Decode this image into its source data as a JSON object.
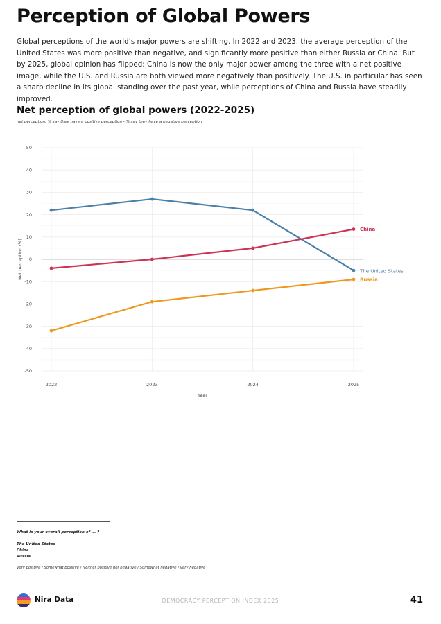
{
  "page": {
    "title": "Perception of Global Powers",
    "intro": "Global perceptions of the world’s major powers are shifting. In 2022 and 2023, the average perception of the United States was more positive than negative, and significantly more positive than either Russia or China. But by 2025, global opinion has flipped: China is now the only major power among the three with a net positive image, while the U.S. and Russia are both viewed more negatively than positively. The U.S. in particular has seen a sharp decline in its global standing over the past year, while perceptions of China and Russia have steadily improved."
  },
  "chart_data": {
    "type": "line",
    "title": "Net perception of global powers (2022-2025)",
    "subtitle": "net perception: % say they have a positive perception - % say they have a negative perception",
    "xlabel": "Year",
    "ylabel": "Net perception (%)",
    "x": [
      "2022",
      "2023",
      "2024",
      "2025"
    ],
    "ylim": [
      -50,
      50
    ],
    "yticks": [
      -50,
      -40,
      -30,
      -20,
      -10,
      0,
      10,
      20,
      30,
      40,
      50
    ],
    "grid": true,
    "legend": "end-labels",
    "series": [
      {
        "name": "The United States",
        "color": "#4a7fa7",
        "values": [
          22,
          27,
          22,
          -5
        ]
      },
      {
        "name": "China",
        "color": "#cc3355",
        "values": [
          -4,
          0,
          5,
          13.5
        ]
      },
      {
        "name": "Russia",
        "color": "#ec9a1e",
        "values": [
          -32,
          -19,
          -14,
          -9
        ]
      }
    ]
  },
  "notes": {
    "question": "What is your overall perception of ... ?",
    "items": [
      "The United States",
      "China",
      "Russia"
    ],
    "scale": "Very positive / Somewhat positive / Neither positive nor negative / Somewhat negative / Very negative"
  },
  "footer": {
    "brand": "Nira Data",
    "center": "DEMOCRACY PERCEPTION INDEX 2025",
    "page_number": "41"
  }
}
